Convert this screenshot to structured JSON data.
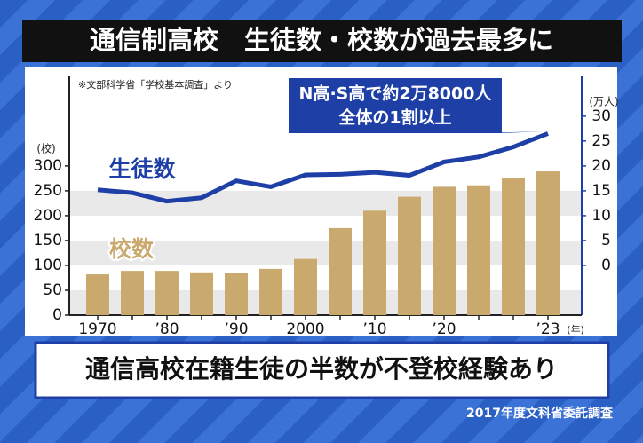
{
  "chart_data": {
    "type": "bar",
    "title": "通信制高校　生徒数・校数が過去最多に",
    "source": "※文部科学省「学校基本調査」より",
    "ylabel": "(校)",
    "y2label": "(万人)",
    "xlabel": "(年)",
    "annotation": [
      "N高·S高で約2万8000人",
      "全体の1割以上"
    ],
    "footer_title": "通信高校在籍生徒の半数が不登校経験あり",
    "footer_source": "2017年度文科省委託調査",
    "categories": [
      "1970",
      null,
      "’80",
      null,
      "’90",
      null,
      "2000",
      null,
      "’10",
      null,
      "’20",
      null,
      null,
      "’23"
    ],
    "series": [
      {
        "name": "校数",
        "type": "bar",
        "color": "#c9a96e",
        "axis": "y",
        "values": [
          82,
          89,
          89,
          86,
          84,
          93,
          113,
          175,
          210,
          238,
          258,
          261,
          275,
          289
        ]
      },
      {
        "name": "生徒数",
        "type": "line",
        "color": "#1d3fa6",
        "axis": "y2",
        "values": [
          15.2,
          14.6,
          12.9,
          13.6,
          17,
          15.8,
          18.2,
          18.3,
          18.7,
          18.1,
          20.8,
          21.8,
          23.8,
          26.5
        ]
      }
    ],
    "ylim": [
      0,
      480
    ],
    "yticks": [
      0,
      50,
      100,
      150,
      200,
      250,
      300
    ],
    "y2lim": [
      -10,
      38
    ],
    "y2ticks": [
      0,
      5,
      10,
      15,
      20,
      25,
      30
    ],
    "grid": true
  }
}
